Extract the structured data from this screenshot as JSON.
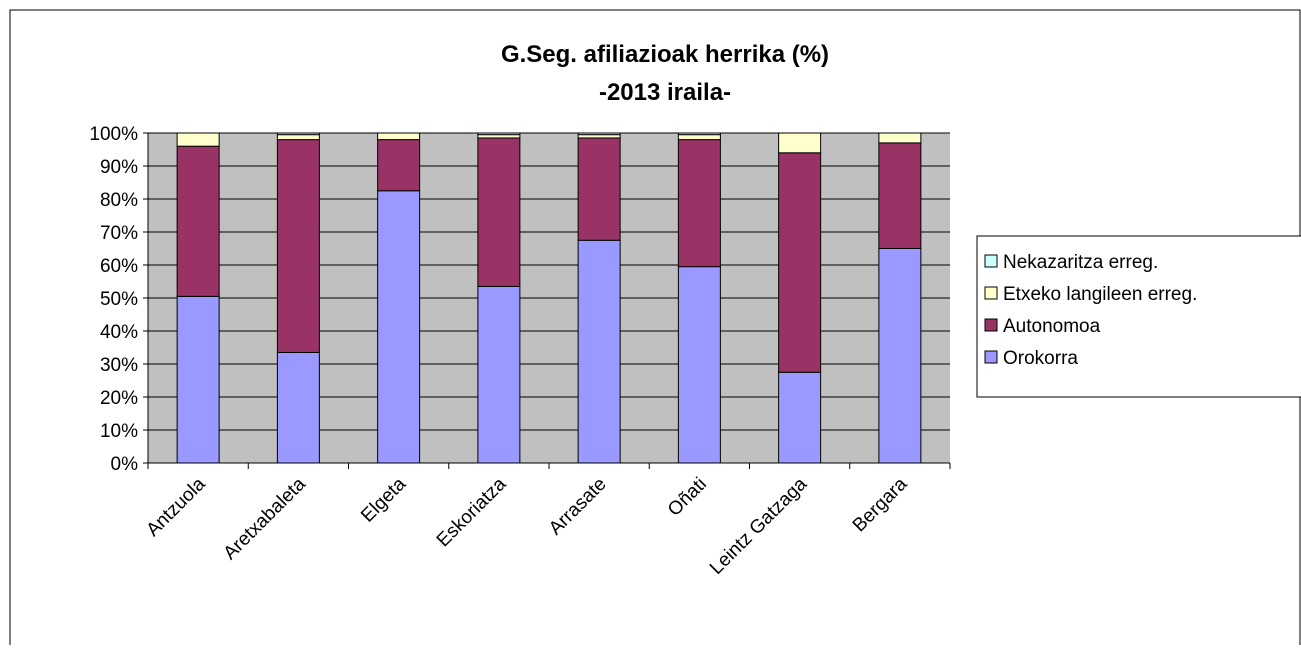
{
  "chart_data": {
    "type": "stacked_bar",
    "title": "G.Seg. afiliazioak herrika (%)",
    "subtitle": "-2013 iraila-",
    "categories": [
      "Antzuola",
      "Aretxabaleta",
      "Elgeta",
      "Eskoriatza",
      "Arrasate",
      "Oñati",
      "Leintz Gatzaga",
      "Bergara"
    ],
    "series": [
      {
        "name": "Orokorra",
        "color": "#9999ff",
        "values": [
          50.5,
          33.5,
          82.5,
          53.5,
          67.5,
          59.5,
          27.5,
          65
        ]
      },
      {
        "name": "Autonomoa",
        "color": "#993366",
        "values": [
          45.5,
          64.5,
          15.5,
          45,
          31,
          38.5,
          66.5,
          32
        ]
      },
      {
        "name": "Etxeko langileen erreg.",
        "color": "#ffffcc",
        "values": [
          4,
          1.5,
          2,
          1,
          1,
          1.5,
          6,
          3
        ]
      },
      {
        "name": "Nekazaritza erreg.",
        "color": "#ccffff",
        "values": [
          0,
          0.5,
          0,
          0.5,
          0.5,
          0.5,
          0,
          0
        ]
      }
    ],
    "ylim": [
      0,
      100
    ],
    "yticks": [
      {
        "value": 0,
        "label": "0%"
      },
      {
        "value": 10,
        "label": "10%"
      },
      {
        "value": 20,
        "label": "20%"
      },
      {
        "value": 30,
        "label": "30%"
      },
      {
        "value": 40,
        "label": "40%"
      },
      {
        "value": 50,
        "label": "50%"
      },
      {
        "value": 60,
        "label": "60%"
      },
      {
        "value": 70,
        "label": "70%"
      },
      {
        "value": 80,
        "label": "80%"
      },
      {
        "value": 90,
        "label": "90%"
      },
      {
        "value": 100,
        "label": "100%"
      }
    ],
    "grid": true,
    "legend": "right"
  }
}
